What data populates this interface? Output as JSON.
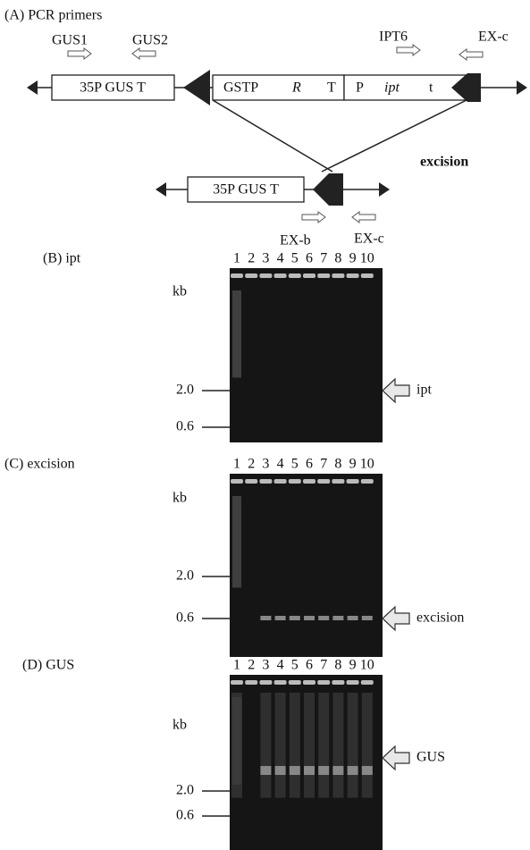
{
  "panel_a": {
    "title": "(A) PCR primers",
    "primers_top": [
      "GUS1",
      "GUS2",
      "IPT6",
      "EX-c"
    ],
    "construct_top": {
      "left": "35P GUS T",
      "middle": [
        "GSTP",
        "R",
        "T"
      ],
      "right": [
        "P",
        "ipt",
        "t"
      ]
    },
    "event": "excision",
    "construct_bottom": "35P GUS T",
    "primers_bottom": [
      "EX-b",
      "EX-c"
    ]
  },
  "gels": [
    {
      "title": "(B) ipt",
      "lanes": [
        "1",
        "2",
        "3",
        "4",
        "5",
        "6",
        "7",
        "8",
        "9",
        "10"
      ],
      "unit": "kb",
      "markers": [
        "2.0",
        "0.6"
      ],
      "product": "ipt"
    },
    {
      "title": "(C) excision",
      "lanes": [
        "1",
        "2",
        "3",
        "4",
        "5",
        "6",
        "7",
        "8",
        "9",
        "10"
      ],
      "unit": "kb",
      "markers": [
        "2.0",
        "0.6"
      ],
      "product": "excision"
    },
    {
      "title": "(D) GUS",
      "lanes": [
        "1",
        "2",
        "3",
        "4",
        "5",
        "6",
        "7",
        "8",
        "9",
        "10"
      ],
      "unit": "kb",
      "markers": [
        "2.0",
        "0.6"
      ],
      "product": "GUS"
    }
  ]
}
